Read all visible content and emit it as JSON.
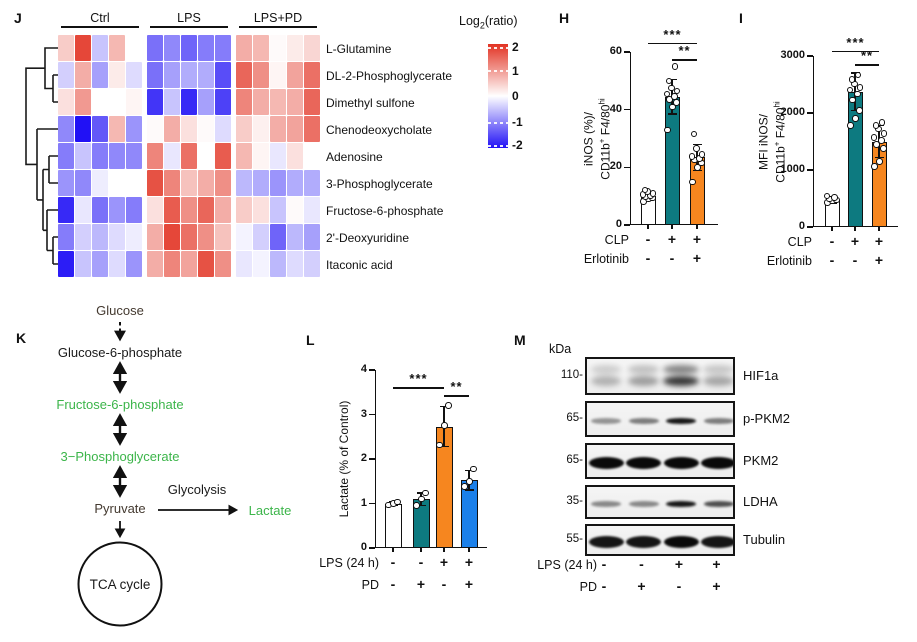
{
  "figure": {
    "panel_labels": {
      "J": "J",
      "H": "H",
      "I": "I",
      "K": "K",
      "L": "L",
      "M": "M"
    }
  },
  "chart_data": [
    {
      "id": "J",
      "type": "heatmap",
      "col_groups": [
        "Ctrl",
        "LPS",
        "LPS+PD"
      ],
      "cols_per_group": 5,
      "rows": [
        "L-Glutamine",
        "DL-2-Phosphoglycerate",
        "Dimethyl sulfone",
        "Chenodeoxycholate",
        "Adenosine",
        "3-Phosphoglycerate",
        "Fructose-6-phosphate",
        "2'-Deoxyuridine",
        "Itaconic acid"
      ],
      "values": [
        [
          0.5,
          1.8,
          -0.5,
          0.7,
          0.0,
          -1.2,
          -1.0,
          -1.3,
          -1.1,
          -1.1,
          0.8,
          0.7,
          0.05,
          0.2,
          0.4
        ],
        [
          -0.4,
          0.8,
          -0.8,
          0.2,
          -0.3,
          -1.2,
          -0.8,
          -0.7,
          -0.7,
          -1.5,
          1.5,
          1.1,
          0.1,
          0.9,
          1.4
        ],
        [
          0.3,
          1.0,
          0.0,
          0.0,
          0.1,
          -1.7,
          -0.5,
          -1.8,
          -0.8,
          -1.6,
          1.2,
          0.8,
          0.7,
          0.8,
          1.5
        ],
        [
          -1.0,
          -2.0,
          -1.4,
          0.7,
          -0.9,
          0.05,
          0.8,
          0.3,
          0.05,
          -0.3,
          0.5,
          0.15,
          0.8,
          0.9,
          1.4
        ],
        [
          -1.1,
          -0.5,
          -1.1,
          -1.0,
          -1.0,
          1.2,
          -0.2,
          1.4,
          0.0,
          1.6,
          0.7,
          0.1,
          -0.2,
          0.3,
          0.0
        ],
        [
          -0.9,
          -1.0,
          -0.15,
          0.0,
          0.0,
          1.7,
          1.2,
          0.6,
          0.8,
          1.1,
          -0.6,
          -0.7,
          -0.9,
          -0.7,
          -0.7
        ],
        [
          -1.8,
          -0.2,
          -1.2,
          -0.9,
          -1.1,
          0.3,
          1.6,
          1.1,
          1.5,
          0.8,
          0.5,
          0.3,
          -0.5,
          0.05,
          -0.2
        ],
        [
          -1.1,
          -0.4,
          -0.6,
          -0.3,
          -0.15,
          0.8,
          1.8,
          1.4,
          1.1,
          0.6,
          -0.1,
          -0.4,
          -1.3,
          -0.6,
          -0.8
        ],
        [
          -1.9,
          -0.5,
          -0.8,
          -0.3,
          -0.9,
          0.8,
          1.2,
          0.9,
          1.7,
          1.1,
          -0.2,
          -0.1,
          -0.6,
          -0.3,
          -0.4
        ]
      ],
      "legend": {
        "title_pre": "Log",
        "title_sub": "2",
        "title_post": "(ratio)",
        "tick_labels": [
          "2",
          "1",
          "0",
          "-1",
          "-2"
        ],
        "min": -2,
        "max": 2,
        "pos_color": "#e23323",
        "neg_color": "#2111f5"
      }
    },
    {
      "id": "H",
      "type": "bar",
      "ylabel_line1": "iNOS (%)/",
      "ylabel_line2_parts": {
        "base1": "CD11b",
        "sup1": "+",
        "base2": " F4/80",
        "sup2": "hi"
      },
      "ylim": [
        0,
        60
      ],
      "yticks": [
        0,
        20,
        40,
        60
      ],
      "bars": [
        {
          "value": 10,
          "err": 1.5,
          "color": "#ffffff",
          "dots": [
            8.2,
            9,
            9.4,
            9.8,
            10.2,
            10.6,
            11,
            11.6,
            12.2
          ]
        },
        {
          "value": 44.5,
          "err": 6,
          "color": "#0d7a80",
          "dots": [
            33,
            41,
            42.5,
            43.5,
            44.5,
            45.5,
            46.5,
            47.5,
            50,
            55
          ]
        },
        {
          "value": 23.5,
          "err": 4.5,
          "color": "#f6861f",
          "dots": [
            15,
            20,
            21.5,
            22.5,
            23,
            23.8,
            24.5,
            26.5,
            31.5
          ]
        }
      ],
      "condition_rows": [
        {
          "label": "CLP",
          "values": [
            "-",
            "+",
            "+"
          ]
        },
        {
          "label": "Erlotinib",
          "values": [
            "-",
            "-",
            "+"
          ]
        }
      ],
      "significance": [
        {
          "from": 0,
          "to": 2,
          "y": 63.2,
          "label": "***"
        },
        {
          "from": 1,
          "to": 2,
          "y": 57.5,
          "label": "**"
        }
      ]
    },
    {
      "id": "I",
      "type": "bar",
      "ylabel_line1": "MFI iNOS/",
      "ylabel_line2_parts": {
        "base1": "CD11b",
        "sup1": "+",
        "base2": " F4/80",
        "sup2": "hi"
      },
      "ylim": [
        0,
        3000
      ],
      "yticks": [
        0,
        1000,
        2000,
        3000
      ],
      "bars": [
        {
          "value": 480,
          "err": 60,
          "color": "#ffffff",
          "dots": [
            430,
            455,
            470,
            490,
            515,
            540
          ]
        },
        {
          "value": 2370,
          "err": 330,
          "color": "#0d7a80",
          "dots": [
            1780,
            1900,
            2040,
            2230,
            2330,
            2400,
            2450,
            2510,
            2590,
            2670
          ]
        },
        {
          "value": 1500,
          "err": 280,
          "color": "#f6861f",
          "dots": [
            1060,
            1150,
            1380,
            1450,
            1520,
            1570,
            1640,
            1720,
            1780,
            1830
          ]
        }
      ],
      "condition_rows": [
        {
          "label": "CLP",
          "values": [
            "-",
            "+",
            "+"
          ]
        },
        {
          "label": "Erlotinib",
          "values": [
            "-",
            "-",
            "+"
          ]
        }
      ],
      "significance": [
        {
          "from": 0,
          "to": 2,
          "y": 3090,
          "label": "***"
        },
        {
          "from": 1,
          "to": 2,
          "y": 2860,
          "label": "**"
        }
      ]
    },
    {
      "id": "L",
      "type": "bar",
      "ylabel": "Lactate (% of Control)",
      "ylim": [
        0,
        4
      ],
      "yticks": [
        0,
        1,
        2,
        3,
        4
      ],
      "bars": [
        {
          "value": 1.0,
          "err": 0.04,
          "color": "#ffffff",
          "dots": [
            0.97,
            1.0,
            1.03
          ]
        },
        {
          "value": 1.1,
          "err": 0.14,
          "color": "#0d7a80",
          "dots": [
            0.95,
            1.1,
            1.24
          ]
        },
        {
          "value": 2.73,
          "err": 0.45,
          "color": "#f6861f",
          "dots": [
            2.32,
            2.75,
            3.2
          ]
        },
        {
          "value": 1.52,
          "err": 0.22,
          "color": "#1b80ea",
          "dots": [
            1.38,
            1.5,
            1.78
          ]
        }
      ],
      "condition_rows": [
        {
          "label": "LPS (24 h)",
          "values": [
            "-",
            "-",
            "+",
            "+"
          ]
        },
        {
          "label": "PD",
          "values": [
            "-",
            "+",
            "-",
            "+"
          ]
        }
      ],
      "significance": [
        {
          "from": 0,
          "to": 2,
          "y": 3.62,
          "label": "***"
        },
        {
          "from": 2,
          "to": 3,
          "y": 3.44,
          "label": "**"
        }
      ]
    }
  ],
  "pathway": {
    "nodes": {
      "glucose": {
        "text": "Glucose",
        "color": "#443a30"
      },
      "g6p": {
        "text": "Glucose-6-phosphate",
        "color": "#1a1a1a"
      },
      "f6p": {
        "text": "Fructose-6-phosphate",
        "color": "#3cb54a"
      },
      "pg3": {
        "text": "3−Phosphoglycerate",
        "color": "#3cb54a"
      },
      "pyruvate": {
        "text": "Pyruvate",
        "color": "#443a30"
      },
      "glycolysis": {
        "text": "Glycolysis",
        "color": "#1a1a1a"
      },
      "lactate": {
        "text": "Lactate",
        "color": "#3cb54a"
      },
      "tca": {
        "text": "TCA cycle",
        "color": "#1a1a1a"
      }
    }
  },
  "blots": {
    "kda_header": "kDa",
    "rows": [
      {
        "kda": "110-",
        "label": "HIF1a",
        "style": "smear",
        "intensities": [
          0.32,
          0.42,
          0.95,
          0.38
        ]
      },
      {
        "kda": "65-",
        "label": "p-PKM2",
        "style": "thin",
        "intensities": [
          0.4,
          0.5,
          0.95,
          0.5
        ]
      },
      {
        "kda": "65-",
        "label": "PKM2",
        "style": "thick",
        "intensities": [
          1,
          1,
          1,
          1
        ]
      },
      {
        "kda": "35-",
        "label": "LDHA",
        "style": "thin",
        "intensities": [
          0.45,
          0.45,
          0.95,
          0.7
        ]
      },
      {
        "kda": "55-",
        "label": "Tubulin",
        "style": "thick",
        "intensities": [
          0.95,
          0.95,
          1,
          0.95
        ]
      }
    ],
    "condition_rows": [
      {
        "label": "LPS (24 h)",
        "values": [
          "-",
          "-",
          "+",
          "+"
        ]
      },
      {
        "label": "PD",
        "values": [
          "-",
          "+",
          "-",
          "+"
        ]
      }
    ]
  }
}
